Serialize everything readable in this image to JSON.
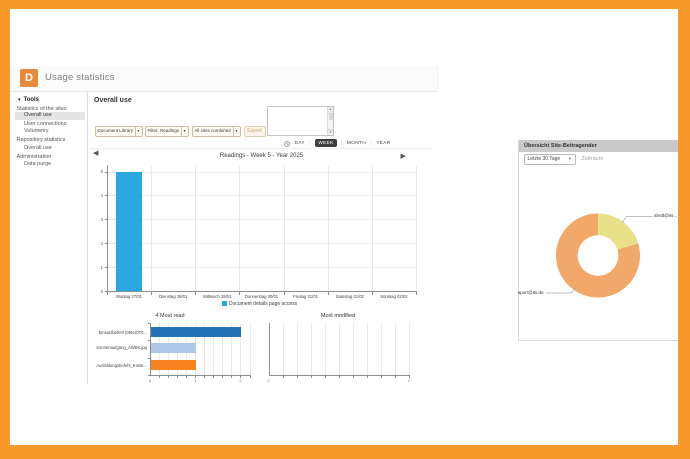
{
  "colors": {
    "frame": "#f8992c",
    "logo": "#e78b3a",
    "selected_nav_bg": "#e4e4e4",
    "readings_bar": "#29a9e0",
    "most_read_bars": [
      "#2373b5",
      "#aec6e8",
      "#f8821e"
    ],
    "donut_yellow": "#e9e18a",
    "donut_orange": "#f2a868",
    "panel_header_bg": "#c9c9c9",
    "week_chip_bg": "#3e3e3e"
  },
  "header": {
    "logo_letter": "D",
    "title": "Usage statistics"
  },
  "sidebar": {
    "root_label": "Tools",
    "sections": [
      {
        "label": "Statistics of the sites",
        "items": [
          "Overall use",
          "User connections",
          "Volumetry"
        ],
        "selected": "Overall use"
      },
      {
        "label": "Repository statistics",
        "items": [
          "Overall use"
        ],
        "selected": ""
      },
      {
        "label": "Administration",
        "items": [
          "Data purge"
        ],
        "selected": ""
      }
    ]
  },
  "main": {
    "heading": "Overall use",
    "filter_buttons": [
      "Document Library",
      "Filter: Readings",
      "All sites combined"
    ],
    "export_label": "Export",
    "period_options": [
      "DAY",
      "WEEK",
      "MONTH",
      "YEAR"
    ],
    "period_selected": "WEEK"
  },
  "panel": {
    "title": "Übersicht Site-Beitragender",
    "range_value": "Letzte 30 Tage",
    "range_caption": "Zeitraum"
  },
  "chart_data": [
    {
      "id": "readings",
      "type": "bar",
      "title": "Readings - Week 5 - Year 2025",
      "categories": [
        "Montag 27/01",
        "Dienstag 28/01",
        "Mittwoch 29/01",
        "Donnerstag 30/01",
        "Freitag 31/01",
        "Samstag 01/02",
        "Sonntag 02/02"
      ],
      "values": [
        5,
        0,
        0,
        0,
        0,
        0,
        0
      ],
      "ylim": [
        0,
        5
      ],
      "yticks": [
        0,
        1,
        2,
        3,
        4,
        5
      ],
      "xlabel": "",
      "ylabel": "",
      "legend": [
        "Document details page access"
      ],
      "legend_position": "bottom",
      "grid": true,
      "bar_color": "#29a9e0"
    },
    {
      "id": "most-read",
      "type": "bar",
      "orientation": "horizontal",
      "title": "4 Most read",
      "categories": [
        "Einsatzbefehl (09N10T0...",
        "Sonnenaufgang_AWBK.jpg",
        "Ausbildungsbefehl_Küste..."
      ],
      "values": [
        2,
        1,
        1
      ],
      "bar_colors": [
        "#2373b5",
        "#aec6e8",
        "#f8821e"
      ],
      "xlim": [
        0,
        2.2
      ],
      "xticks": [
        0,
        1,
        2
      ],
      "grid": true
    },
    {
      "id": "most-modified",
      "type": "bar",
      "orientation": "horizontal",
      "title": "Most modified",
      "categories": [],
      "values": [],
      "xlim": [
        0,
        1
      ],
      "xticks": [
        0,
        1
      ],
      "grid": true
    },
    {
      "id": "contributors",
      "type": "pie",
      "donut": true,
      "title": "Übersicht Site-Beitragender",
      "start_angle_deg": 0,
      "clockwise": true,
      "slices": [
        {
          "label": "ahrdt@its...",
          "value": 20.3,
          "color": "#e9e18a"
        },
        {
          "label": "aporr@its.de",
          "value": 79.7,
          "color": "#f2a868"
        }
      ]
    }
  ]
}
